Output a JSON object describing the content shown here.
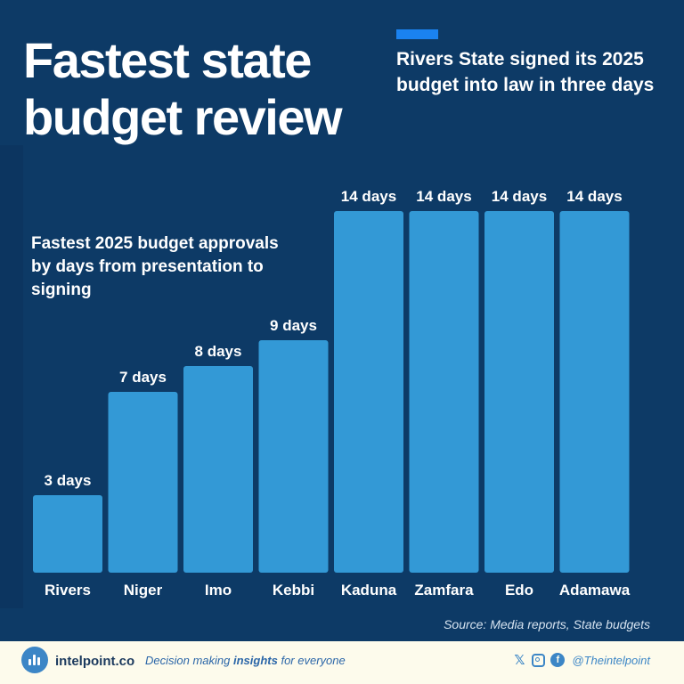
{
  "title": "Fastest state budget review",
  "headline": "Rivers State signed its 2025 budget into law in three days",
  "source": "Source: Media reports, State budgets",
  "footer": {
    "brand": "intelpoint.co",
    "tagline_prefix": "Decision making ",
    "tagline_emphasis": "insights",
    "tagline_suffix": " for everyone",
    "handle": "@Theintelpoint",
    "icons": [
      "bar-chart-logo-icon",
      "x-icon",
      "instagram-icon",
      "facebook-icon"
    ]
  },
  "colors": {
    "background": "#0d3a66",
    "bar": "#3399d6",
    "accent": "#1a82f0",
    "footer_background": "#fdfbec"
  },
  "chart_data": {
    "type": "bar",
    "subtitle": "Fastest 2025 budget approvals by days from presentation to signing",
    "categories": [
      "Rivers",
      "Niger",
      "Imo",
      "Kebbi",
      "Kaduna",
      "Zamfara",
      "Edo",
      "Adamawa"
    ],
    "values": [
      3,
      7,
      8,
      9,
      14,
      14,
      14,
      14
    ],
    "value_labels": [
      "3 days",
      "7 days",
      "8 days",
      "9 days",
      "14 days",
      "14 days",
      "14 days",
      "14 days"
    ],
    "ylim": [
      0,
      14
    ],
    "grid": false,
    "legend": "none"
  }
}
